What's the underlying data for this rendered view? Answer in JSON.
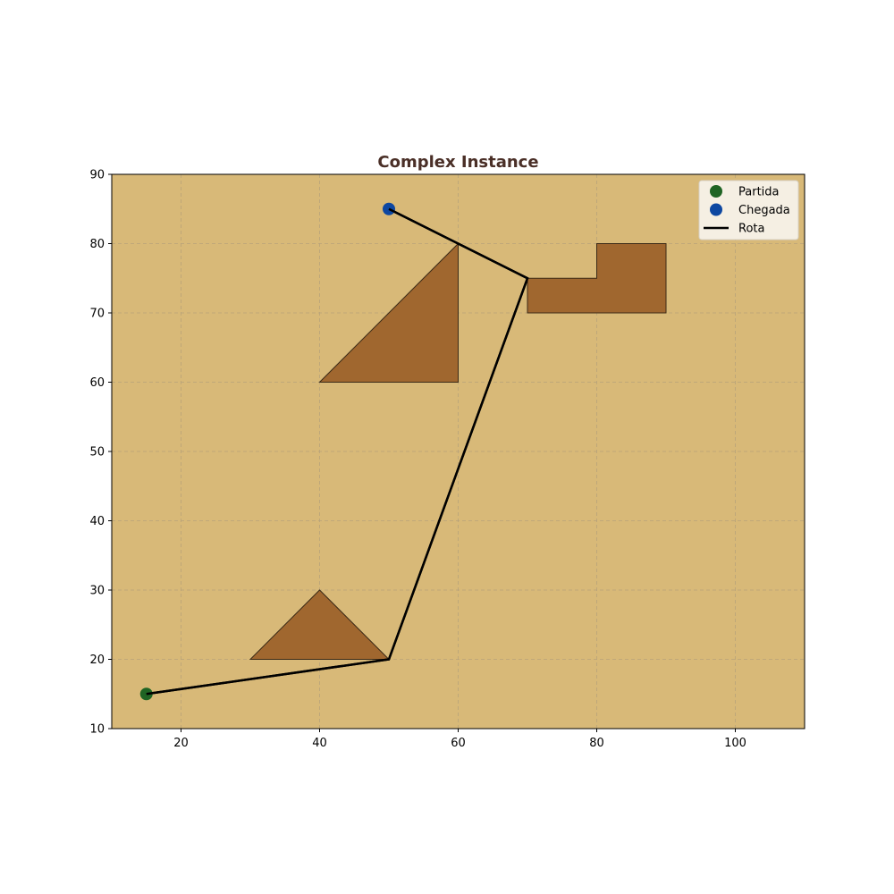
{
  "chart_data": {
    "type": "scatter",
    "title": "Complex Instance",
    "xlabel": "",
    "ylabel": "",
    "xlim": [
      10,
      110
    ],
    "ylim": [
      10,
      90
    ],
    "xticks": [
      20,
      40,
      60,
      80,
      100
    ],
    "yticks": [
      10,
      20,
      30,
      40,
      50,
      60,
      70,
      80,
      90
    ],
    "grid": true,
    "legend_position": "top-right",
    "obstacles": [
      {
        "vertices": [
          [
            40,
            60
          ],
          [
            60,
            80
          ],
          [
            60,
            60
          ]
        ]
      },
      {
        "vertices": [
          [
            70,
            70
          ],
          [
            90,
            70
          ],
          [
            90,
            80
          ],
          [
            80,
            80
          ],
          [
            80,
            75
          ],
          [
            70,
            75
          ]
        ]
      },
      {
        "vertices": [
          [
            30,
            20
          ],
          [
            50,
            20
          ],
          [
            40,
            30
          ]
        ]
      }
    ],
    "series": [
      {
        "name": "Partida",
        "kind": "point",
        "points": [
          [
            15,
            15
          ]
        ]
      },
      {
        "name": "Chegada",
        "kind": "point",
        "points": [
          [
            50,
            85
          ]
        ]
      },
      {
        "name": "Rota",
        "kind": "line",
        "points": [
          [
            15,
            15
          ],
          [
            50,
            20
          ],
          [
            70,
            75
          ],
          [
            60,
            80
          ],
          [
            50,
            85
          ]
        ]
      }
    ]
  },
  "colors": {
    "background": "#d8b978",
    "obstacle_fill": "#a0672f",
    "obstacle_edge": "#3b2a17",
    "grid": "#b8a37a",
    "title": "#4a2f27",
    "start": "#1f6424",
    "goal": "#0d47a1",
    "route": "#000000",
    "legend_bg": "#f5efe3"
  }
}
